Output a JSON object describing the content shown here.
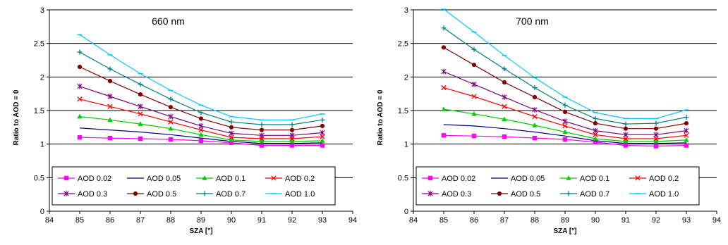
{
  "chart_data": [
    {
      "type": "line",
      "title": "660 nm",
      "xlabel": "SZA [°]",
      "ylabel": "Ratio to AOD = 0",
      "xlim": [
        84,
        94
      ],
      "ylim": [
        0,
        3
      ],
      "xticks": [
        84,
        85,
        86,
        87,
        88,
        89,
        90,
        91,
        92,
        93,
        94
      ],
      "yticks": [
        0,
        0.5,
        1,
        1.5,
        2,
        2.5,
        3
      ],
      "ytick_labels": [
        "0",
        "0.5",
        "1",
        "1.5",
        "2",
        "2.5",
        "3"
      ],
      "grid": "horizontal",
      "legend": "inside-bottom",
      "x": [
        85,
        86,
        87,
        88,
        89,
        90,
        91,
        92,
        93
      ],
      "series": [
        {
          "name": "AOD 0.02",
          "color": "#ff00ff",
          "marker": "square",
          "values": [
            1.1,
            1.09,
            1.08,
            1.07,
            1.05,
            1.02,
            0.98,
            0.98,
            0.98
          ]
        },
        {
          "name": "AOD 0.05",
          "color": "#000080",
          "marker": "none",
          "values": [
            1.24,
            1.21,
            1.18,
            1.14,
            1.09,
            1.04,
            1.01,
            1.01,
            1.02
          ]
        },
        {
          "name": "AOD 0.1",
          "color": "#00cc00",
          "marker": "triangle",
          "values": [
            1.41,
            1.36,
            1.3,
            1.23,
            1.14,
            1.06,
            1.04,
            1.04,
            1.05
          ]
        },
        {
          "name": "AOD 0.2",
          "color": "#ff0000",
          "marker": "x",
          "values": [
            1.67,
            1.56,
            1.45,
            1.33,
            1.21,
            1.1,
            1.08,
            1.08,
            1.11
          ]
        },
        {
          "name": "AOD 0.3",
          "color": "#800080",
          "marker": "star",
          "values": [
            1.86,
            1.71,
            1.56,
            1.41,
            1.27,
            1.16,
            1.13,
            1.13,
            1.17
          ]
        },
        {
          "name": "AOD 0.5",
          "color": "#800000",
          "marker": "circle",
          "values": [
            2.15,
            1.94,
            1.74,
            1.55,
            1.38,
            1.25,
            1.21,
            1.21,
            1.27
          ]
        },
        {
          "name": "AOD 0.7",
          "color": "#008080",
          "marker": "plus",
          "values": [
            2.37,
            2.12,
            1.89,
            1.67,
            1.47,
            1.33,
            1.29,
            1.29,
            1.36
          ]
        },
        {
          "name": "AOD 1.0",
          "color": "#00c8ff",
          "marker": "dash",
          "values": [
            2.63,
            2.33,
            2.05,
            1.8,
            1.58,
            1.41,
            1.36,
            1.36,
            1.45
          ]
        }
      ]
    },
    {
      "type": "line",
      "title": "700 nm",
      "xlabel": "SZA [°]",
      "ylabel": "Ratio to AOD = 0",
      "xlim": [
        84,
        94
      ],
      "ylim": [
        0,
        3
      ],
      "xticks": [
        84,
        85,
        86,
        87,
        88,
        89,
        90,
        91,
        92,
        93,
        94
      ],
      "yticks": [
        0,
        0.5,
        1,
        1.5,
        2,
        2.5,
        3
      ],
      "ytick_labels": [
        "0",
        "0.5",
        "1",
        "1.5",
        "2",
        "2.5",
        "3"
      ],
      "grid": "horizontal",
      "legend": "inside-bottom",
      "x": [
        85,
        86,
        87,
        88,
        89,
        90,
        91,
        92,
        93
      ],
      "series": [
        {
          "name": "AOD 0.02",
          "color": "#ff00ff",
          "marker": "square",
          "values": [
            1.13,
            1.12,
            1.11,
            1.09,
            1.07,
            1.03,
            0.98,
            0.97,
            0.98
          ]
        },
        {
          "name": "AOD 0.05",
          "color": "#000080",
          "marker": "none",
          "values": [
            1.29,
            1.27,
            1.23,
            1.18,
            1.12,
            1.05,
            1.01,
            1.01,
            1.02
          ]
        },
        {
          "name": "AOD 0.1",
          "color": "#00cc00",
          "marker": "triangle",
          "values": [
            1.52,
            1.45,
            1.37,
            1.28,
            1.18,
            1.08,
            1.04,
            1.04,
            1.06
          ]
        },
        {
          "name": "AOD 0.2",
          "color": "#ff0000",
          "marker": "x",
          "values": [
            1.84,
            1.71,
            1.56,
            1.41,
            1.27,
            1.14,
            1.08,
            1.08,
            1.13
          ]
        },
        {
          "name": "AOD 0.3",
          "color": "#800080",
          "marker": "star",
          "values": [
            2.08,
            1.89,
            1.7,
            1.51,
            1.34,
            1.2,
            1.14,
            1.14,
            1.2
          ]
        },
        {
          "name": "AOD 0.5",
          "color": "#800000",
          "marker": "circle",
          "values": [
            2.44,
            2.18,
            1.92,
            1.7,
            1.48,
            1.31,
            1.23,
            1.23,
            1.31
          ]
        },
        {
          "name": "AOD 0.7",
          "color": "#008080",
          "marker": "plus",
          "values": [
            2.73,
            2.41,
            2.12,
            1.84,
            1.58,
            1.38,
            1.3,
            1.31,
            1.4
          ]
        },
        {
          "name": "AOD 1.0",
          "color": "#00c8ff",
          "marker": "dash",
          "values": [
            3.01,
            2.67,
            2.32,
            1.99,
            1.7,
            1.47,
            1.38,
            1.38,
            1.51
          ]
        }
      ]
    }
  ]
}
